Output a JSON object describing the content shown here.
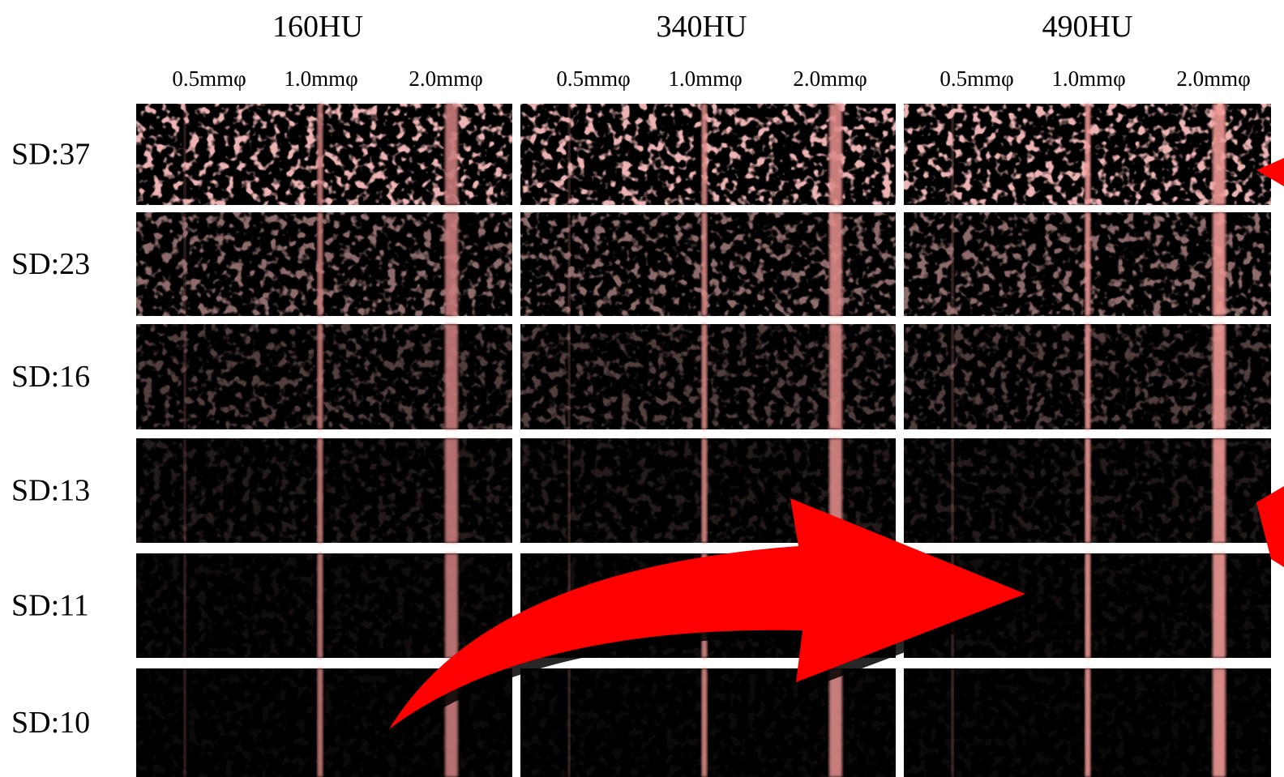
{
  "columns": [
    {
      "title": "160HU",
      "vessels": [
        "0.5mmφ",
        "1.0mmφ",
        "2.0mmφ"
      ]
    },
    {
      "title": "340HU",
      "vessels": [
        "0.5mmφ",
        "1.0mmφ",
        "2.0mmφ"
      ]
    },
    {
      "title": "490HU",
      "vessels": [
        "0.5mmφ",
        "1.0mmφ",
        "2.0mmφ"
      ]
    }
  ],
  "rows": [
    "SD:37",
    "SD:23",
    "SD:16",
    "SD:13",
    "SD:11",
    "SD:10"
  ]
}
